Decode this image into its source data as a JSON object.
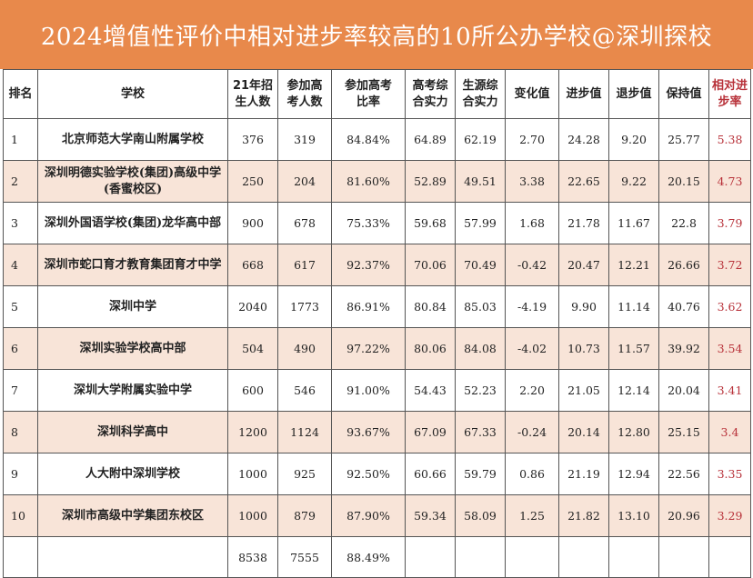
{
  "title": "2024增值性评价中相对进步率较高的10所公办学校@深圳探校",
  "headers": {
    "rank": "排名",
    "school": "学校",
    "enroll_line1": "21年招",
    "enroll_line2": "生人数",
    "exam_line1": "参加高",
    "exam_line2": "考人数",
    "ratio_line1": "参加高考",
    "ratio_line2": "比率",
    "gaokao_line1": "高考综",
    "gaokao_line2": "合实力",
    "source_line1": "生源综",
    "source_line2": "合实力",
    "change": "变化值",
    "progress": "进步值",
    "regress": "退步值",
    "keep": "保持值",
    "rel_line1": "相对进",
    "rel_line2": "步率"
  },
  "rows": [
    {
      "rank": "1",
      "school_line1": "北京师范大学南山附属学校",
      "school_line2": "",
      "enroll": "376",
      "exam": "319",
      "ratio": "84.84%",
      "gaokao": "64.89",
      "source": "62.19",
      "change": "2.70",
      "progress": "24.28",
      "regress": "9.20",
      "keep": "25.77",
      "rel": "5.38"
    },
    {
      "rank": "2",
      "school_line1": "深圳明德实验学校(集团)高级中学",
      "school_line2": "(香蜜校区)",
      "enroll": "250",
      "exam": "204",
      "ratio": "81.60%",
      "gaokao": "52.89",
      "source": "49.51",
      "change": "3.38",
      "progress": "22.65",
      "regress": "9.22",
      "keep": "20.15",
      "rel": "4.73"
    },
    {
      "rank": "3",
      "school_line1": "深圳外国语学校(集团)龙华高中部",
      "school_line2": "",
      "enroll": "900",
      "exam": "678",
      "ratio": "75.33%",
      "gaokao": "59.68",
      "source": "57.99",
      "change": "1.68",
      "progress": "21.78",
      "regress": "11.67",
      "keep": "22.8",
      "rel": "3.79"
    },
    {
      "rank": "4",
      "school_line1": "深圳市蛇口育才教育集团育才中学",
      "school_line2": "",
      "enroll": "668",
      "exam": "617",
      "ratio": "92.37%",
      "gaokao": "70.06",
      "source": "70.49",
      "change": "-0.42",
      "progress": "20.47",
      "regress": "12.21",
      "keep": "26.66",
      "rel": "3.72"
    },
    {
      "rank": "5",
      "school_line1": "深圳中学",
      "school_line2": "",
      "enroll": "2040",
      "exam": "1773",
      "ratio": "86.91%",
      "gaokao": "80.84",
      "source": "85.03",
      "change": "-4.19",
      "progress": "9.90",
      "regress": "11.14",
      "keep": "40.76",
      "rel": "3.62"
    },
    {
      "rank": "6",
      "school_line1": "深圳实验学校高中部",
      "school_line2": "",
      "enroll": "504",
      "exam": "490",
      "ratio": "97.22%",
      "gaokao": "80.06",
      "source": "84.08",
      "change": "-4.02",
      "progress": "10.73",
      "regress": "11.57",
      "keep": "39.92",
      "rel": "3.54"
    },
    {
      "rank": "7",
      "school_line1": "深圳大学附属实验中学",
      "school_line2": "",
      "enroll": "600",
      "exam": "546",
      "ratio": "91.00%",
      "gaokao": "54.43",
      "source": "52.23",
      "change": "2.20",
      "progress": "21.05",
      "regress": "12.14",
      "keep": "20.04",
      "rel": "3.41"
    },
    {
      "rank": "8",
      "school_line1": "深圳科学高中",
      "school_line2": "",
      "enroll": "1200",
      "exam": "1124",
      "ratio": "93.67%",
      "gaokao": "67.09",
      "source": "67.33",
      "change": "-0.24",
      "progress": "20.14",
      "regress": "12.80",
      "keep": "25.15",
      "rel": "3.4"
    },
    {
      "rank": "9",
      "school_line1": "人大附中深圳学校",
      "school_line2": "",
      "enroll": "1000",
      "exam": "925",
      "ratio": "92.50%",
      "gaokao": "60.66",
      "source": "59.79",
      "change": "0.86",
      "progress": "21.19",
      "regress": "12.94",
      "keep": "22.56",
      "rel": "3.35"
    },
    {
      "rank": "10",
      "school_line1": "深圳市高级中学集团东校区",
      "school_line2": "",
      "enroll": "1000",
      "exam": "879",
      "ratio": "87.90%",
      "gaokao": "59.34",
      "source": "58.09",
      "change": "1.25",
      "progress": "21.82",
      "regress": "13.10",
      "keep": "20.96",
      "rel": "3.29"
    }
  ],
  "totals": {
    "enroll": "8538",
    "exam": "7555",
    "ratio": "88.49%"
  },
  "colors": {
    "title_bg": "#e8894b",
    "row_shade": "#f8e4d8",
    "accent_red": "#b8323a"
  }
}
